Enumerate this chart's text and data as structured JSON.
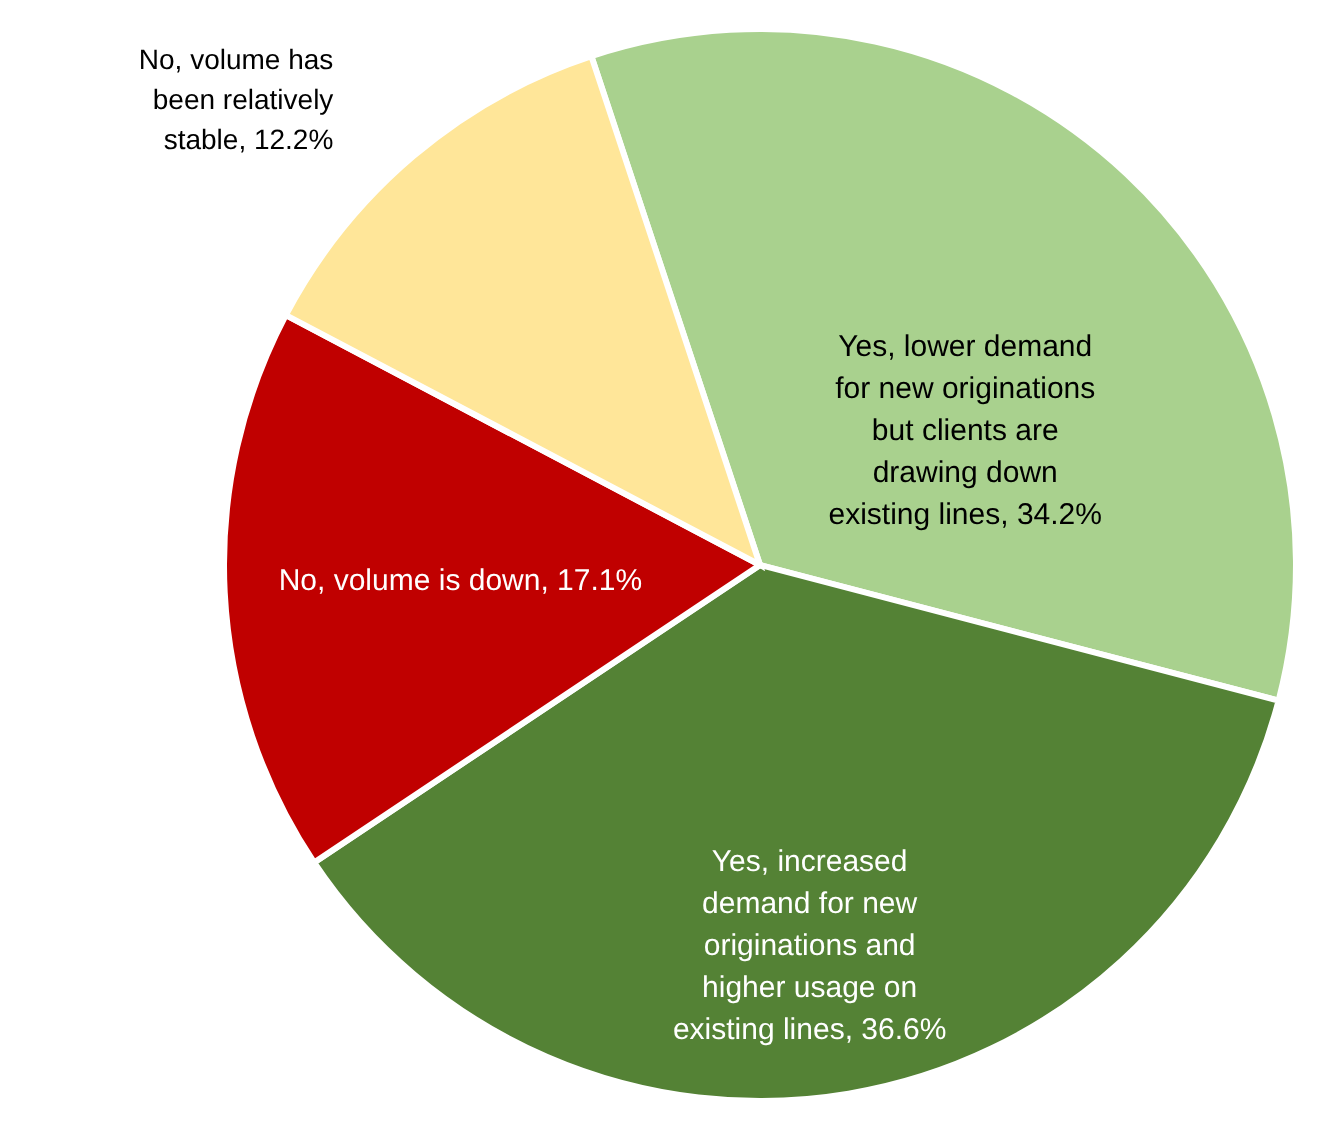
{
  "chart_data": {
    "type": "pie",
    "categories": [
      "Yes, lower demand for new originations but clients are drawing down existing lines",
      "Yes, increased demand for new originations and higher usage on existing lines",
      "No, volume is down",
      "No, volume has been relatively stable"
    ],
    "values": [
      34.2,
      36.6,
      17.1,
      12.2
    ],
    "value_labels": [
      "34.2%",
      "36.6%",
      "17.1%",
      "12.2%"
    ],
    "colors": [
      "#a9d18e",
      "#548235",
      "#c00000",
      "#ffe699"
    ]
  }
}
